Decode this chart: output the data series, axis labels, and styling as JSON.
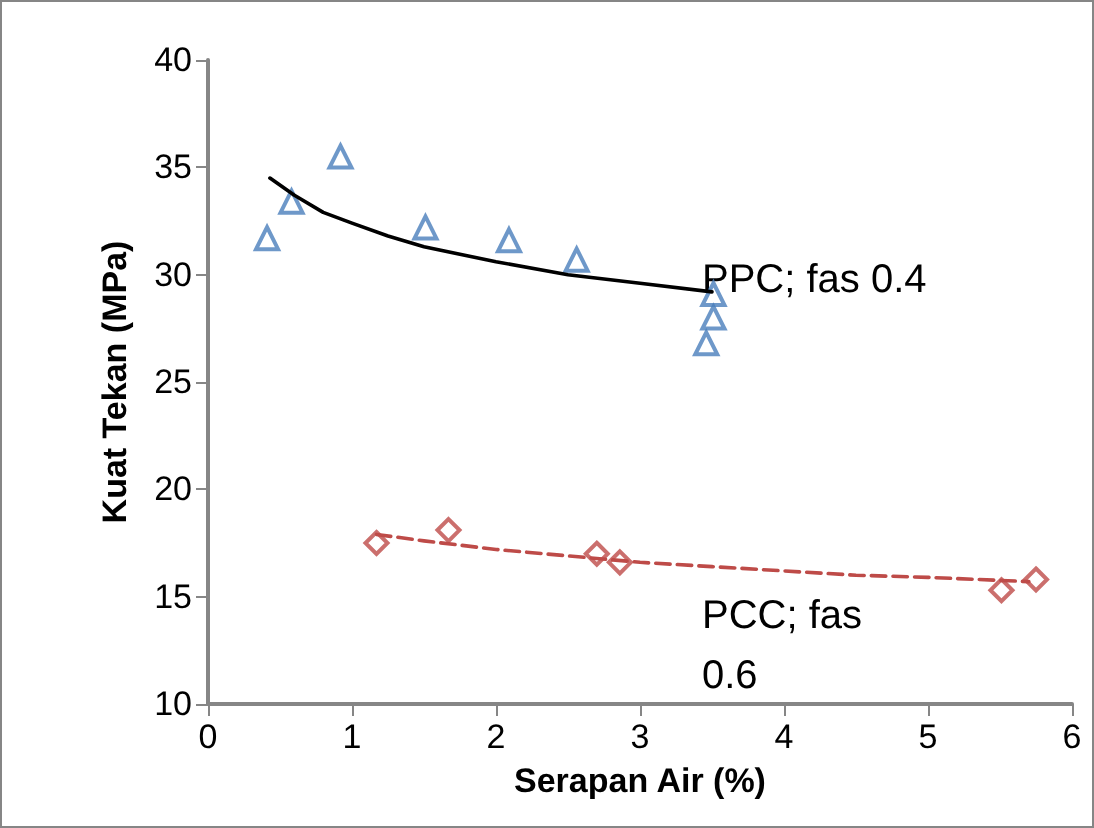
{
  "chart_data": {
    "type": "scatter",
    "xlabel": "Serapan Air (%)",
    "ylabel": "Kuat Tekan (MPa)",
    "xlim": [
      0,
      6
    ],
    "xticks": [
      0,
      1,
      2,
      3,
      4,
      5,
      6
    ],
    "ylim": [
      10,
      40
    ],
    "yticks": [
      10,
      15,
      20,
      25,
      30,
      35,
      40
    ],
    "grid": false,
    "series": [
      {
        "color": "#4a7ebb",
        "marker": "triangle",
        "x": [
          0.41,
          0.58,
          0.92,
          1.51,
          2.09,
          2.56,
          3.51,
          3.51,
          3.46
        ],
        "values": [
          31.7,
          33.4,
          35.5,
          32.2,
          31.6,
          30.7,
          29.1,
          28.0,
          26.8
        ]
      },
      {
        "color": "#be4b48",
        "marker": "diamond",
        "x": [
          1.17,
          1.67,
          2.7,
          2.86,
          5.51,
          5.75
        ],
        "values": [
          17.5,
          18.1,
          17.0,
          16.6,
          15.3,
          15.8
        ]
      },
      {
        "type": "line",
        "color": "#000000",
        "marker": "none",
        "line_style": "solid",
        "x": [
          0.43,
          0.6,
          0.8,
          1,
          1.25,
          1.5,
          2,
          2.5,
          3,
          3.5
        ],
        "values": [
          34.5,
          33.7,
          32.9,
          32.4,
          31.8,
          31.3,
          30.6,
          30.0,
          29.6,
          29.2
        ]
      },
      {
        "type": "line",
        "color": "#be4b48",
        "marker": "none",
        "line_style": "dashed",
        "x": [
          1.17,
          1.5,
          2,
          2.5,
          3,
          3.5,
          4,
          4.5,
          5,
          5.7
        ],
        "values": [
          17.9,
          17.6,
          17.2,
          16.9,
          16.6,
          16.4,
          16.2,
          16.0,
          15.9,
          15.7
        ]
      }
    ],
    "annotations": [
      "PPC; fas 0.4",
      "PCC; fas 0.6"
    ]
  }
}
